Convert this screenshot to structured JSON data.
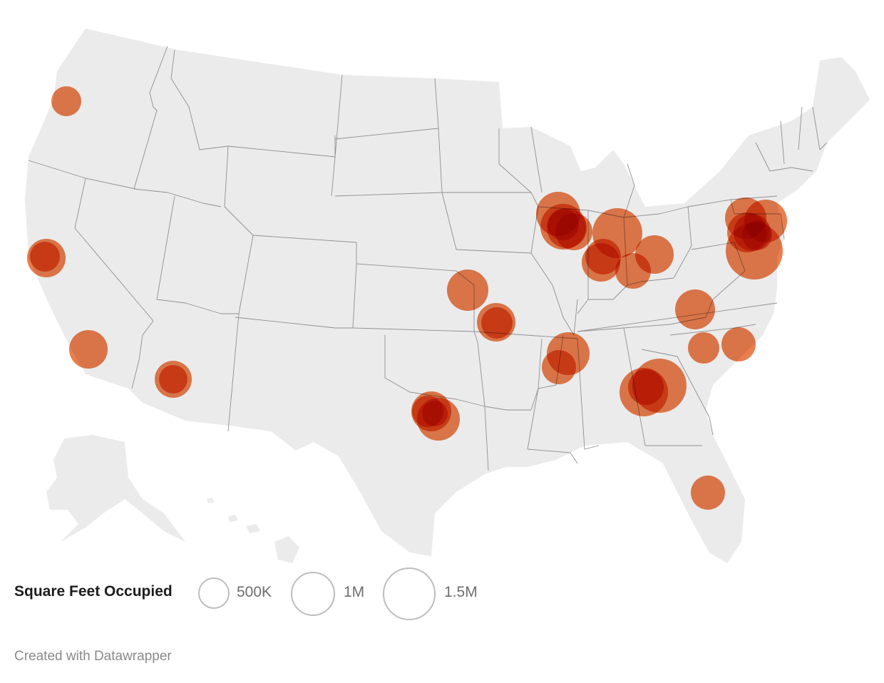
{
  "map": {
    "region": "United States",
    "land_color": "#ebebeb",
    "border_color": "#8f8f8f",
    "marker_color": "#e65a1c",
    "marker_overlap_color": "#a30000"
  },
  "legend": {
    "title": "Square Feet Occupied",
    "sizes": [
      {
        "label": "500K",
        "value": 500000
      },
      {
        "label": "1M",
        "value": 1000000
      },
      {
        "label": "1.5M",
        "value": 1500000
      }
    ]
  },
  "footer": {
    "credit": "Created with Datawrapper"
  }
}
